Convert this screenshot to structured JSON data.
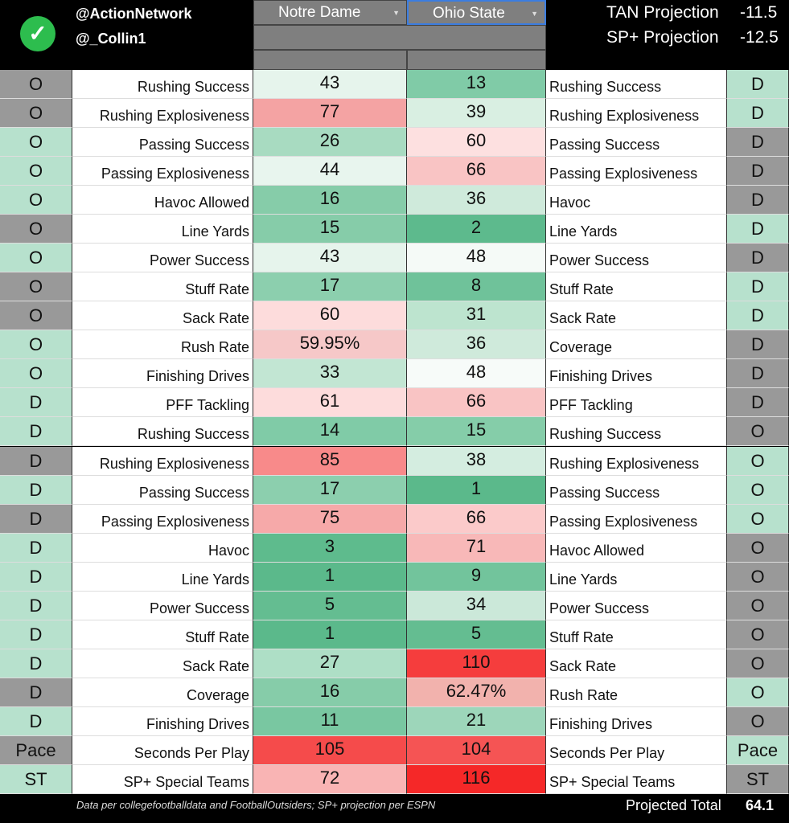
{
  "header": {
    "handle1": "@ActionNetwork",
    "handle2": "@_Collin1",
    "team1": "Notre Dame",
    "team2": "Ohio State",
    "tan_label": "TAN Projection",
    "tan_value": "-11.5",
    "sp_label": "SP+ Projection",
    "sp_value": "-12.5",
    "check_icon": "check-circle-icon"
  },
  "colors": {
    "gray": "#999999",
    "mint": "#b7e1cd"
  },
  "rows": [
    {
      "ls": "O",
      "lsc": "gray",
      "ll": "Rushing Success",
      "v1": "43",
      "c1": "#e6f4ec",
      "v2": "13",
      "c2": "#80cba7",
      "rl": "Rushing Success",
      "rs": "D",
      "rsc": "mint"
    },
    {
      "ls": "O",
      "lsc": "gray",
      "ll": "Rushing Explosiveness",
      "v1": "77",
      "c1": "#f4a3a3",
      "v2": "39",
      "c2": "#d9efe2",
      "rl": "Rushing Explosiveness",
      "rs": "D",
      "rsc": "mint"
    },
    {
      "ls": "O",
      "lsc": "mint",
      "ll": "Passing Success",
      "v1": "26",
      "c1": "#a8dbc1",
      "v2": "60",
      "c2": "#fde0e0",
      "rl": "Passing Success",
      "rs": "D",
      "rsc": "gray"
    },
    {
      "ls": "O",
      "lsc": "mint",
      "ll": "Passing Explosiveness",
      "v1": "44",
      "c1": "#e8f5ee",
      "v2": "66",
      "c2": "#f9c4c4",
      "rl": "Passing Explosiveness",
      "rs": "D",
      "rsc": "gray"
    },
    {
      "ls": "O",
      "lsc": "mint",
      "ll": "Havoc Allowed",
      "v1": "16",
      "c1": "#86cca9",
      "v2": "36",
      "c2": "#cfeadb",
      "rl": "Havoc",
      "rs": "D",
      "rsc": "gray"
    },
    {
      "ls": "O",
      "lsc": "gray",
      "ll": "Line Yards",
      "v1": "15",
      "c1": "#86cca9",
      "v2": "2",
      "c2": "#5dba8d",
      "rl": "Line Yards",
      "rs": "D",
      "rsc": "mint"
    },
    {
      "ls": "O",
      "lsc": "mint",
      "ll": "Power Success",
      "v1": "43",
      "c1": "#e6f4ec",
      "v2": "48",
      "c2": "#f5faf7",
      "rl": "Power Success",
      "rs": "D",
      "rsc": "gray"
    },
    {
      "ls": "O",
      "lsc": "gray",
      "ll": "Stuff Rate",
      "v1": "17",
      "c1": "#8ccfae",
      "v2": "8",
      "c2": "#6fc29a",
      "rl": "Stuff Rate",
      "rs": "D",
      "rsc": "mint"
    },
    {
      "ls": "O",
      "lsc": "gray",
      "ll": "Sack Rate",
      "v1": "60",
      "c1": "#fddcdc",
      "v2": "31",
      "c2": "#bde4cf",
      "rl": "Sack Rate",
      "rs": "D",
      "rsc": "mint"
    },
    {
      "ls": "O",
      "lsc": "mint",
      "ll": "Rush Rate",
      "v1": "59.95%",
      "c1": "#f6c8c8",
      "v2": "36",
      "c2": "#cfeadb",
      "rl": "Coverage",
      "rs": "D",
      "rsc": "gray"
    },
    {
      "ls": "O",
      "lsc": "mint",
      "ll": "Finishing Drives",
      "v1": "33",
      "c1": "#c2e6d3",
      "v2": "48",
      "c2": "#f7fbf9",
      "rl": "Finishing Drives",
      "rs": "D",
      "rsc": "gray"
    },
    {
      "ls": "D",
      "lsc": "mint",
      "ll": "PFF Tackling",
      "v1": "61",
      "c1": "#fddcdc",
      "v2": "66",
      "c2": "#f9c4c4",
      "rl": "PFF Tackling",
      "rs": "D",
      "rsc": "gray"
    },
    {
      "ls": "D",
      "lsc": "mint",
      "ll": "Rushing Success",
      "v1": "14",
      "c1": "#80cba7",
      "v2": "15",
      "c2": "#85cda9",
      "rl": "Rushing Success",
      "rs": "O",
      "rsc": "gray"
    },
    {
      "ls": "D",
      "lsc": "gray",
      "ll": "Rushing Explosiveness",
      "v1": "85",
      "c1": "#f88a8a",
      "v2": "38",
      "c2": "#d4ede0",
      "rl": "Rushing Explosiveness",
      "rs": "O",
      "rsc": "mint"
    },
    {
      "ls": "D",
      "lsc": "mint",
      "ll": "Passing Success",
      "v1": "17",
      "c1": "#8ccfae",
      "v2": "1",
      "c2": "#5bb98b",
      "rl": "Passing Success",
      "rs": "O",
      "rsc": "mint"
    },
    {
      "ls": "D",
      "lsc": "gray",
      "ll": "Passing Explosiveness",
      "v1": "75",
      "c1": "#f6a9a9",
      "v2": "66",
      "c2": "#fbcaca",
      "rl": "Passing Explosiveness",
      "rs": "O",
      "rsc": "mint"
    },
    {
      "ls": "D",
      "lsc": "mint",
      "ll": "Havoc",
      "v1": "3",
      "c1": "#5ebb8d",
      "v2": "71",
      "c2": "#f8b8b8",
      "rl": "Havoc Allowed",
      "rs": "O",
      "rsc": "gray"
    },
    {
      "ls": "D",
      "lsc": "mint",
      "ll": "Line Yards",
      "v1": "1",
      "c1": "#5bb98b",
      "v2": "9",
      "c2": "#72c49c",
      "rl": "Line Yards",
      "rs": "O",
      "rsc": "gray"
    },
    {
      "ls": "D",
      "lsc": "mint",
      "ll": "Power Success",
      "v1": "5",
      "c1": "#64bd91",
      "v2": "34",
      "c2": "#cbe8d9",
      "rl": "Power Success",
      "rs": "O",
      "rsc": "gray"
    },
    {
      "ls": "D",
      "lsc": "mint",
      "ll": "Stuff Rate",
      "v1": "1",
      "c1": "#5bb98b",
      "v2": "5",
      "c2": "#64bd91",
      "rl": "Stuff Rate",
      "rs": "O",
      "rsc": "gray"
    },
    {
      "ls": "D",
      "lsc": "mint",
      "ll": "Sack Rate",
      "v1": "27",
      "c1": "#aedfc6",
      "v2": "110",
      "c2": "#f53d3d",
      "rl": "Sack Rate",
      "rs": "O",
      "rsc": "gray"
    },
    {
      "ls": "D",
      "lsc": "gray",
      "ll": "Coverage",
      "v1": "16",
      "c1": "#86cca9",
      "v2": "62.47%",
      "c2": "#f2b2ad",
      "rl": "Rush Rate",
      "rs": "O",
      "rsc": "mint"
    },
    {
      "ls": "D",
      "lsc": "mint",
      "ll": "Finishing Drives",
      "v1": "11",
      "c1": "#79c7a1",
      "v2": "21",
      "c2": "#9dd6ba",
      "rl": "Finishing Drives",
      "rs": "O",
      "rsc": "gray"
    },
    {
      "ls": "Pace",
      "lsc": "gray",
      "ll": "Seconds Per Play",
      "v1": "105",
      "c1": "#f54b4b",
      "v2": "104",
      "c2": "#f55454",
      "rl": "Seconds Per Play",
      "rs": "Pace",
      "rsc": "mint"
    },
    {
      "ls": "ST",
      "lsc": "mint",
      "ll": "SP+ Special Teams",
      "v1": "72",
      "c1": "#f9b4b4",
      "v2": "116",
      "c2": "#f52828",
      "rl": "SP+ Special Teams",
      "rs": "ST",
      "rsc": "gray"
    }
  ],
  "footer": {
    "source": "Data per collegefootballdata and FootballOutsiders; SP+ projection per ESPN",
    "total_label": "Projected Total",
    "total_value": "64.1"
  }
}
